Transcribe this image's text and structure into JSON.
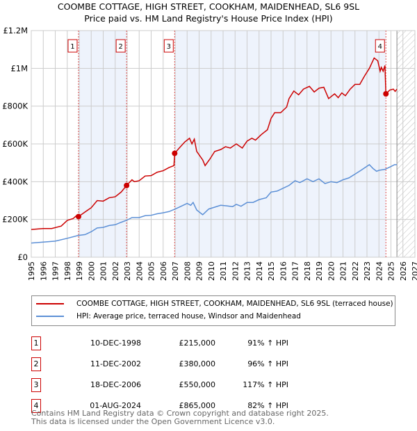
{
  "chart_data": {
    "type": "line",
    "title": "COOMBE COTTAGE, HIGH STREET, COOKHAM, MAIDENHEAD, SL6 9SL",
    "subtitle": "Price paid vs. HM Land Registry's House Price Index (HPI)",
    "xlim": [
      1995,
      2027
    ],
    "ylim": [
      0,
      1200000
    ],
    "y_ticks": [
      {
        "v": 0,
        "label": "£0"
      },
      {
        "v": 200000,
        "label": "£200K"
      },
      {
        "v": 400000,
        "label": "£400K"
      },
      {
        "v": 600000,
        "label": "£600K"
      },
      {
        "v": 800000,
        "label": "£800K"
      },
      {
        "v": 1000000,
        "label": "£1M"
      },
      {
        "v": 1200000,
        "label": "£1.2M"
      }
    ],
    "x_ticks": [
      "1995",
      "1996",
      "1997",
      "1998",
      "1999",
      "2000",
      "2001",
      "2002",
      "2003",
      "2004",
      "2005",
      "2006",
      "2007",
      "2008",
      "2009",
      "2010",
      "2011",
      "2012",
      "2013",
      "2014",
      "2015",
      "2016",
      "2017",
      "2018",
      "2019",
      "2020",
      "2021",
      "2022",
      "2023",
      "2024",
      "2025",
      "2026",
      "2027"
    ],
    "grid": true,
    "forecast_from": 2025.5,
    "series": [
      {
        "name": "COOMBE COTTAGE, HIGH STREET, COOKHAM, MAIDENHEAD, SL6 9SL (terraced house)",
        "color": "#cc0000",
        "points": [
          [
            1995,
            147
          ],
          [
            1996,
            152
          ],
          [
            1996.7,
            152
          ],
          [
            1997.5,
            165
          ],
          [
            1998,
            195
          ],
          [
            1998.5,
            205
          ],
          [
            1998.8,
            222
          ],
          [
            1998.94,
            215
          ],
          [
            1999.5,
            240
          ],
          [
            2000,
            262
          ],
          [
            2000.5,
            300
          ],
          [
            2001,
            297
          ],
          [
            2001.5,
            315
          ],
          [
            2002,
            320
          ],
          [
            2002.5,
            345
          ],
          [
            2002.95,
            380
          ],
          [
            2003.4,
            410
          ],
          [
            2003.6,
            400
          ],
          [
            2004,
            405
          ],
          [
            2004.5,
            430
          ],
          [
            2005,
            432
          ],
          [
            2005.5,
            450
          ],
          [
            2006,
            458
          ],
          [
            2006.5,
            475
          ],
          [
            2006.9,
            485
          ],
          [
            2006.96,
            550
          ],
          [
            2007.3,
            575
          ],
          [
            2007.8,
            610
          ],
          [
            2008.2,
            630
          ],
          [
            2008.4,
            600
          ],
          [
            2008.6,
            625
          ],
          [
            2008.8,
            560
          ],
          [
            2009.3,
            515
          ],
          [
            2009.5,
            485
          ],
          [
            2009.9,
            520
          ],
          [
            2010.3,
            560
          ],
          [
            2010.8,
            570
          ],
          [
            2011.2,
            585
          ],
          [
            2011.6,
            578
          ],
          [
            2012.1,
            600
          ],
          [
            2012.6,
            578
          ],
          [
            2013,
            615
          ],
          [
            2013.4,
            630
          ],
          [
            2013.7,
            620
          ],
          [
            2014.2,
            650
          ],
          [
            2014.7,
            675
          ],
          [
            2015,
            735
          ],
          [
            2015.3,
            765
          ],
          [
            2015.8,
            765
          ],
          [
            2016.3,
            795
          ],
          [
            2016.5,
            840
          ],
          [
            2016.9,
            880
          ],
          [
            2017.3,
            860
          ],
          [
            2017.7,
            890
          ],
          [
            2018.2,
            905
          ],
          [
            2018.6,
            875
          ],
          [
            2019,
            895
          ],
          [
            2019.4,
            900
          ],
          [
            2019.8,
            840
          ],
          [
            2020.3,
            865
          ],
          [
            2020.6,
            845
          ],
          [
            2020.9,
            870
          ],
          [
            2021.2,
            855
          ],
          [
            2021.6,
            890
          ],
          [
            2022,
            915
          ],
          [
            2022.4,
            915
          ],
          [
            2022.8,
            960
          ],
          [
            2023.2,
            1000
          ],
          [
            2023.6,
            1055
          ],
          [
            2023.9,
            1040
          ],
          [
            2024.1,
            985
          ],
          [
            2024.2,
            1005
          ],
          [
            2024.35,
            985
          ],
          [
            2024.5,
            1015
          ],
          [
            2024.58,
            865
          ],
          [
            2024.9,
            885
          ],
          [
            2025.2,
            890
          ],
          [
            2025.35,
            878
          ],
          [
            2025.5,
            890
          ]
        ]
      },
      {
        "name": "HPI: Average price, terraced house, Windsor and Maidenhead",
        "color": "#5b8fd6",
        "points": [
          [
            1995,
            75
          ],
          [
            1996,
            80
          ],
          [
            1997,
            85
          ],
          [
            1998,
            100
          ],
          [
            1998.9,
            115
          ],
          [
            1999.5,
            120
          ],
          [
            2000,
            135
          ],
          [
            2000.5,
            155
          ],
          [
            2001,
            158
          ],
          [
            2001.5,
            168
          ],
          [
            2002,
            172
          ],
          [
            2002.5,
            185
          ],
          [
            2003,
            197
          ],
          [
            2003.4,
            210
          ],
          [
            2004,
            210
          ],
          [
            2004.5,
            220
          ],
          [
            2005,
            222
          ],
          [
            2005.5,
            230
          ],
          [
            2006,
            235
          ],
          [
            2006.5,
            242
          ],
          [
            2007,
            255
          ],
          [
            2007.5,
            270
          ],
          [
            2008,
            285
          ],
          [
            2008.3,
            275
          ],
          [
            2008.5,
            290
          ],
          [
            2008.8,
            250
          ],
          [
            2009.3,
            225
          ],
          [
            2009.8,
            255
          ],
          [
            2010.3,
            265
          ],
          [
            2010.8,
            275
          ],
          [
            2011.3,
            272
          ],
          [
            2011.8,
            268
          ],
          [
            2012.1,
            280
          ],
          [
            2012.5,
            270
          ],
          [
            2013,
            290
          ],
          [
            2013.5,
            290
          ],
          [
            2014,
            305
          ],
          [
            2014.6,
            315
          ],
          [
            2015,
            345
          ],
          [
            2015.5,
            350
          ],
          [
            2016,
            365
          ],
          [
            2016.5,
            380
          ],
          [
            2017,
            405
          ],
          [
            2017.4,
            395
          ],
          [
            2018,
            415
          ],
          [
            2018.5,
            400
          ],
          [
            2019,
            415
          ],
          [
            2019.5,
            390
          ],
          [
            2020,
            400
          ],
          [
            2020.5,
            395
          ],
          [
            2021,
            410
          ],
          [
            2021.5,
            420
          ],
          [
            2022,
            440
          ],
          [
            2022.5,
            460
          ],
          [
            2023.2,
            490
          ],
          [
            2023.5,
            470
          ],
          [
            2023.8,
            455
          ],
          [
            2024,
            460
          ],
          [
            2024.5,
            465
          ],
          [
            2025,
            480
          ],
          [
            2025.3,
            490
          ],
          [
            2025.5,
            490
          ]
        ]
      }
    ],
    "sales": [
      {
        "label": "1",
        "x": 1998.94,
        "price": 215000
      },
      {
        "label": "2",
        "x": 2002.95,
        "price": 380000
      },
      {
        "label": "3",
        "x": 2006.96,
        "price": 550000
      },
      {
        "label": "4",
        "x": 2024.58,
        "price": 865000
      }
    ]
  },
  "legend": {
    "property": "COOMBE COTTAGE, HIGH STREET, COOKHAM, MAIDENHEAD, SL6 9SL (terraced house)",
    "hpi": "HPI: Average price, terraced house, Windsor and Maidenhead"
  },
  "table": [
    {
      "num": "1",
      "date": "10-DEC-1998",
      "price": "£215,000",
      "hpi": "91% ↑ HPI"
    },
    {
      "num": "2",
      "date": "11-DEC-2002",
      "price": "£380,000",
      "hpi": "96% ↑ HPI"
    },
    {
      "num": "3",
      "date": "18-DEC-2006",
      "price": "£550,000",
      "hpi": "117% ↑ HPI"
    },
    {
      "num": "4",
      "date": "01-AUG-2024",
      "price": "£865,000",
      "hpi": "82% ↑ HPI"
    }
  ],
  "footer": {
    "line1": "Contains HM Land Registry data © Crown copyright and database right 2025.",
    "line2": "This data is licensed under the Open Government Licence v3.0."
  }
}
